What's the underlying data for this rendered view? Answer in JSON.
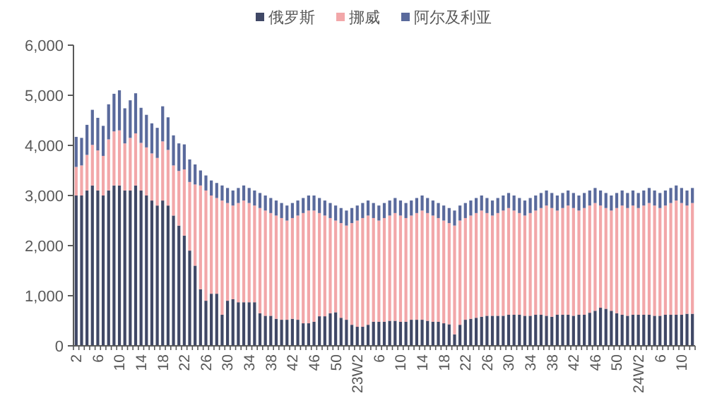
{
  "chart_data": {
    "type": "bar",
    "stacked": true,
    "legend": "top",
    "grid": false,
    "categories": [
      "2",
      null,
      null,
      null,
      "6",
      null,
      null,
      null,
      "10",
      null,
      null,
      null,
      "14",
      null,
      null,
      null,
      "18",
      null,
      null,
      null,
      "22",
      null,
      null,
      null,
      "26",
      null,
      null,
      null,
      "30",
      null,
      null,
      null,
      "34",
      null,
      null,
      null,
      "38",
      null,
      null,
      null,
      "42",
      null,
      null,
      null,
      "46",
      null,
      null,
      null,
      "50",
      null,
      null,
      null,
      "23W2",
      null,
      null,
      null,
      "6",
      null,
      null,
      null,
      "10",
      null,
      null,
      null,
      "14",
      null,
      null,
      null,
      "18",
      null,
      null,
      null,
      "22",
      null,
      null,
      null,
      "26",
      null,
      null,
      null,
      "30",
      null,
      null,
      null,
      "34",
      null,
      null,
      null,
      "38",
      null,
      null,
      null,
      "42",
      null,
      null,
      null,
      "46",
      null,
      null,
      null,
      "50",
      null,
      null,
      null,
      "24W2",
      null,
      null,
      null,
      "6",
      null,
      null,
      null,
      "10",
      null,
      null
    ],
    "ylim": [
      0,
      6000
    ],
    "yticks": [
      0,
      {
        "value": 1000,
        "label": "1,000"
      },
      {
        "value": 2000,
        "label": "2,000"
      },
      {
        "value": 3000,
        "label": "3,000"
      },
      {
        "value": 4000,
        "label": "4,000"
      },
      {
        "value": 5000,
        "label": "5,000"
      },
      {
        "value": 6000,
        "label": "6,000"
      }
    ],
    "series": [
      {
        "name": "俄罗斯",
        "color": "#404866",
        "values": [
          3000,
          3000,
          3100,
          3200,
          3100,
          3000,
          3100,
          3200,
          3200,
          3100,
          3100,
          3200,
          3100,
          3000,
          2900,
          2800,
          2900,
          2800,
          2600,
          2400,
          2200,
          1900,
          1600,
          1130,
          900,
          1040,
          1040,
          620,
          900,
          930,
          870,
          870,
          870,
          870,
          650,
          600,
          600,
          540,
          520,
          520,
          540,
          520,
          450,
          450,
          480,
          590,
          590,
          650,
          670,
          560,
          520,
          420,
          380,
          380,
          420,
          480,
          480,
          480,
          500,
          500,
          480,
          480,
          520,
          520,
          520,
          500,
          480,
          480,
          450,
          430,
          230,
          420,
          520,
          540,
          560,
          580,
          600,
          600,
          600,
          600,
          620,
          620,
          620,
          600,
          600,
          620,
          620,
          600,
          580,
          620,
          620,
          620,
          600,
          620,
          620,
          660,
          700,
          760,
          740,
          700,
          650,
          620,
          600,
          620,
          620,
          620,
          620,
          600,
          600,
          620,
          620,
          620,
          620,
          640,
          640
        ]
      },
      {
        "name": "挪威",
        "color": "#f2a7a9",
        "values": [
          570,
          600,
          710,
          810,
          800,
          790,
          1020,
          1080,
          1100,
          940,
          1050,
          1040,
          950,
          960,
          940,
          950,
          1180,
          1110,
          1000,
          1090,
          1320,
          1370,
          1620,
          2070,
          2200,
          1960,
          1910,
          2280,
          1950,
          1870,
          1980,
          2030,
          1980,
          1930,
          2100,
          2100,
          2050,
          2060,
          2030,
          1980,
          2010,
          2080,
          2200,
          2250,
          2220,
          2060,
          2010,
          1900,
          1830,
          1890,
          1880,
          2030,
          2120,
          2170,
          2180,
          2070,
          2020,
          2070,
          2100,
          2150,
          2120,
          2070,
          2080,
          2130,
          2180,
          2150,
          2120,
          2070,
          2050,
          2020,
          2170,
          2080,
          2030,
          2060,
          2090,
          2120,
          2050,
          2000,
          2050,
          2100,
          2130,
          2080,
          2030,
          2000,
          2050,
          2080,
          2130,
          2200,
          2170,
          2080,
          2130,
          2180,
          2150,
          2080,
          2130,
          2140,
          2150,
          2040,
          2010,
          2000,
          2100,
          2180,
          2150,
          2180,
          2130,
          2180,
          2230,
          2200,
          2150,
          2180,
          2230,
          2280,
          2230,
          2160,
          2210
        ]
      },
      {
        "name": "阿尔及利亚",
        "color": "#5a6a9c",
        "values": [
          600,
          550,
          600,
          700,
          650,
          600,
          700,
          750,
          800,
          700,
          750,
          800,
          700,
          650,
          600,
          600,
          700,
          650,
          600,
          550,
          500,
          450,
          400,
          300,
          300,
          300,
          300,
          300,
          300,
          300,
          300,
          300,
          300,
          300,
          300,
          300,
          300,
          300,
          300,
          300,
          300,
          300,
          300,
          300,
          300,
          300,
          300,
          300,
          300,
          300,
          300,
          300,
          300,
          300,
          300,
          300,
          300,
          300,
          300,
          300,
          300,
          300,
          300,
          300,
          300,
          300,
          300,
          300,
          300,
          300,
          300,
          300,
          300,
          300,
          300,
          300,
          300,
          300,
          300,
          300,
          300,
          300,
          300,
          300,
          300,
          300,
          300,
          300,
          300,
          300,
          300,
          300,
          300,
          300,
          300,
          300,
          300,
          300,
          300,
          300,
          300,
          300,
          300,
          300,
          300,
          300,
          300,
          300,
          300,
          300,
          300,
          300,
          300,
          300,
          300
        ]
      }
    ]
  }
}
